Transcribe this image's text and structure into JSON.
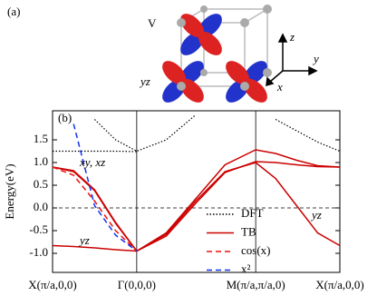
{
  "panel_a": {
    "label": "(a)",
    "atom_label": "V",
    "orbital_label": "yz",
    "axis_labels": [
      "z",
      "y",
      "x"
    ]
  },
  "chart_data": {
    "type": "line",
    "panel_label": "(b)",
    "y_label": "Energy(eV)",
    "x": [
      0,
      0.25,
      0.5,
      0.75,
      1,
      1.35,
      1.7,
      2.05,
      2.414,
      2.65,
      2.9,
      3.15,
      3.414
    ],
    "xlim": [
      0,
      3.414
    ],
    "xticks": [
      {
        "value": 0,
        "label": "X(π/a,0,0)"
      },
      {
        "value": 1,
        "label": "Γ(0,0,0)"
      },
      {
        "value": 2.414,
        "label": "M(π/a,π/a,0)"
      },
      {
        "value": 3.414,
        "label": "X(π/a,0,0)"
      }
    ],
    "ylim": [
      -1.42,
      2.14
    ],
    "yticks": [
      {
        "value": -1,
        "label": "-1.0"
      },
      -0.5,
      {
        "value": 0,
        "label": "0.0"
      },
      0.5,
      {
        "value": 1,
        "label": "1.0"
      },
      1.5
    ],
    "fermi_level": 0,
    "legend": "lower right",
    "series": [
      {
        "name": "DFT",
        "color": "#000000",
        "style": "dotted",
        "values": [
          1.25,
          1.25,
          1.25,
          1.25,
          1.24,
          null,
          null,
          null,
          null,
          null,
          null,
          null,
          null
        ]
      },
      {
        "color": "#000000",
        "style": "dotted",
        "values": [
          null,
          null,
          1.95,
          1.5,
          1.25,
          1.5,
          2.05,
          null,
          null,
          1.95,
          1.7,
          1.45,
          1.25
        ]
      },
      {
        "name": "TB",
        "color": "#cc0000",
        "style": "solid",
        "values": [
          0.9,
          0.82,
          0.4,
          -0.32,
          -0.95,
          -0.55,
          0.2,
          0.95,
          1.28,
          1.2,
          1.05,
          0.93,
          0.9
        ]
      },
      {
        "color": "#cc0000",
        "style": "solid",
        "values": [
          0.9,
          0.8,
          0.38,
          -0.34,
          -0.95,
          -0.58,
          0.15,
          0.8,
          1.0,
          0.65,
          0.05,
          -0.55,
          -0.83
        ]
      },
      {
        "color": "#cc0000",
        "style": "solid",
        "values": [
          -0.83,
          -0.85,
          -0.88,
          -0.92,
          -0.95,
          -0.62,
          0.1,
          0.78,
          1.02,
          1.0,
          0.95,
          0.91,
          0.9
        ]
      },
      {
        "name": "cos(x)",
        "color": "#ee1111",
        "style": "dashed",
        "values": [
          0.9,
          0.72,
          0.15,
          -0.5,
          -0.95,
          null,
          null,
          null,
          null,
          null,
          null,
          null,
          null
        ]
      },
      {
        "name": "x²",
        "color": "#1133ee",
        "style": "dashed",
        "values": [
          null,
          1.85,
          0.05,
          -0.6,
          -0.95,
          null,
          null,
          null,
          null,
          null,
          null,
          null,
          null
        ]
      }
    ],
    "annotations": [
      "xy, xz",
      "yz",
      "yz"
    ]
  }
}
